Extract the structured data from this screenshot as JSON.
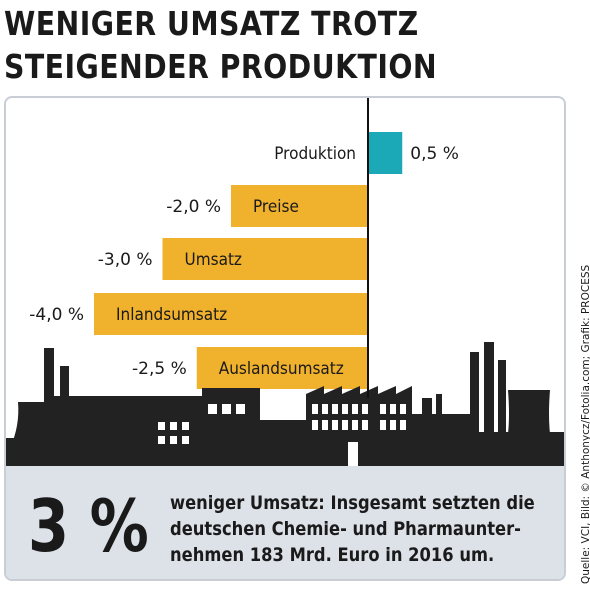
{
  "title_line1": "WENIGER UMSATZ TROTZ",
  "title_line2": "STEIGENDER PRODUKTION",
  "colors": {
    "positive": "#1ba9b8",
    "negative": "#f0b12d",
    "skyline": "#222222",
    "band": "#dde1e8"
  },
  "chart_data": {
    "type": "bar",
    "orientation": "horizontal",
    "categories": [
      "Produktion",
      "Preise",
      "Umsatz",
      "Inlandsumsatz",
      "Auslandsumsatz"
    ],
    "values": [
      0.5,
      -2.0,
      -3.0,
      -4.0,
      -2.5
    ],
    "value_labels": [
      "0,5 %",
      "-2,0 %",
      "-3,0 %",
      "-4,0 %",
      "-2,5 %"
    ],
    "unit": "%",
    "xlim": [
      -4.0,
      0.5
    ]
  },
  "footer": {
    "big_stat": "3 %",
    "text_line1": "weniger Umsatz: Insgesamt setzten die",
    "text_line2": "deutschen Chemie- und Pharmaunter-",
    "text_line3": "nehmen 183 Mrd. Euro in 2016 um."
  },
  "source": "Quelle: VCI, Bild: © Anthonycz/Fotolia.com; Grafik: PROCESS"
}
